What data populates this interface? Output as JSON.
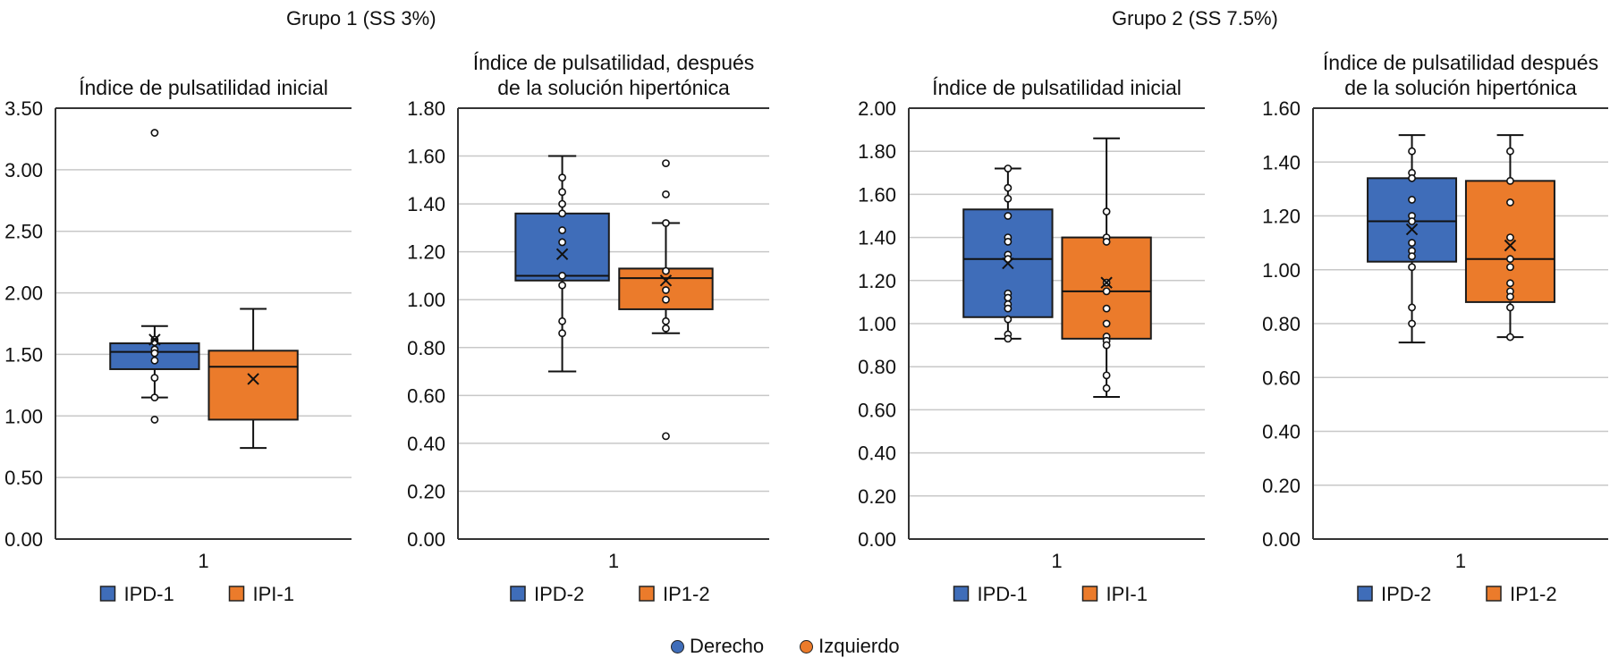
{
  "groups": [
    {
      "title": "Grupo 1 (SS 3%)"
    },
    {
      "title": "Grupo 2 (SS 7.5%)"
    }
  ],
  "colors": {
    "blue": "#3F6DB9",
    "orange": "#EB7B2B",
    "grid": "#C8C8C8",
    "axis": "#333333"
  },
  "series_legend": [
    {
      "label": "Derecho",
      "color": "#3F6DB9"
    },
    {
      "label": "Izquierdo",
      "color": "#EB7B2B"
    }
  ],
  "chart_data": [
    {
      "type": "box",
      "group": "Grupo 1 (SS 3%)",
      "title": [
        "Índice de pulsatilidad inicial"
      ],
      "xlabel": "",
      "ylabel": "",
      "categories": [
        "1"
      ],
      "ylim": [
        0,
        3.5
      ],
      "yticks": [
        "0.00",
        "0.50",
        "1.00",
        "1.50",
        "2.00",
        "2.50",
        "3.00",
        "3.50"
      ],
      "ystep": 0.5,
      "grid": true,
      "legend": "bottom",
      "series": [
        {
          "name": "IPD-1",
          "color": "#3F6DB9",
          "q1": 1.38,
          "median": 1.52,
          "q3": 1.59,
          "whisker_low": 1.15,
          "whisker_high": 1.73,
          "mean": 1.62,
          "points": [
            3.3,
            1.62,
            1.6,
            1.54,
            1.51,
            1.45,
            1.31,
            1.15,
            0.97
          ]
        },
        {
          "name": "IPI-1",
          "color": "#EB7B2B",
          "q1": 0.97,
          "median": 1.4,
          "q3": 1.53,
          "whisker_low": 0.74,
          "whisker_high": 1.87,
          "mean": 1.3,
          "points": []
        }
      ]
    },
    {
      "type": "box",
      "group": "Grupo 1 (SS 3%)",
      "title": [
        "Índice de pulsatilidad, después",
        "de la solución hipertónica"
      ],
      "xlabel": "",
      "ylabel": "",
      "categories": [
        "1"
      ],
      "ylim": [
        0,
        1.8
      ],
      "yticks": [
        "0.00",
        "0.20",
        "0.40",
        "0.60",
        "0.80",
        "1.00",
        "1.20",
        "1.40",
        "1.60",
        "1.80"
      ],
      "ystep": 0.2,
      "grid": true,
      "legend": "bottom",
      "series": [
        {
          "name": "IPD-2",
          "color": "#3F6DB9",
          "q1": 1.08,
          "median": 1.1,
          "q3": 1.36,
          "whisker_low": 0.7,
          "whisker_high": 1.6,
          "mean": 1.19,
          "points": [
            1.51,
            1.45,
            1.4,
            1.36,
            1.29,
            1.24,
            1.1,
            1.06,
            0.91,
            0.86
          ]
        },
        {
          "name": "IP1-2",
          "color": "#EB7B2B",
          "q1": 0.96,
          "median": 1.09,
          "q3": 1.13,
          "whisker_low": 0.86,
          "whisker_high": 1.32,
          "mean": 1.08,
          "points": [
            1.57,
            1.44,
            1.32,
            1.12,
            1.04,
            1.0,
            0.91,
            0.88,
            0.43
          ]
        }
      ]
    },
    {
      "type": "box",
      "group": "Grupo 2 (SS 7.5%)",
      "title": [
        "Índice de pulsatilidad inicial"
      ],
      "xlabel": "",
      "ylabel": "",
      "categories": [
        "1"
      ],
      "ylim": [
        0,
        2.0
      ],
      "yticks": [
        "0.00",
        "0.20",
        "0.40",
        "0.60",
        "0.80",
        "1.00",
        "1.20",
        "1.40",
        "1.60",
        "1.80",
        "2.00"
      ],
      "ystep": 0.2,
      "grid": true,
      "legend": "bottom",
      "series": [
        {
          "name": "IPD-1",
          "color": "#3F6DB9",
          "q1": 1.03,
          "median": 1.3,
          "q3": 1.53,
          "whisker_low": 0.93,
          "whisker_high": 1.72,
          "mean": 1.28,
          "points": [
            1.72,
            1.63,
            1.58,
            1.5,
            1.4,
            1.38,
            1.32,
            1.3,
            1.14,
            1.12,
            1.09,
            1.07,
            1.02,
            0.95,
            0.93
          ]
        },
        {
          "name": "IPI-1",
          "color": "#EB7B2B",
          "q1": 0.93,
          "median": 1.15,
          "q3": 1.4,
          "whisker_low": 0.66,
          "whisker_high": 1.86,
          "mean": 1.19,
          "points": [
            1.52,
            1.4,
            1.38,
            1.19,
            1.15,
            1.07,
            1.0,
            0.94,
            0.92,
            0.9,
            0.76,
            0.7
          ]
        }
      ]
    },
    {
      "type": "box",
      "group": "Grupo 2 (SS 7.5%)",
      "title": [
        "Índice de pulsatilidad después",
        "de la solución hipertónica"
      ],
      "xlabel": "",
      "ylabel": "",
      "categories": [
        "1"
      ],
      "ylim": [
        0,
        1.6
      ],
      "yticks": [
        "0.00",
        "0.20",
        "0.40",
        "0.60",
        "0.80",
        "1.00",
        "1.20",
        "1.40",
        "1.60"
      ],
      "ystep": 0.2,
      "grid": true,
      "legend": "bottom",
      "series": [
        {
          "name": "IPD-2",
          "color": "#3F6DB9",
          "q1": 1.03,
          "median": 1.18,
          "q3": 1.34,
          "whisker_low": 0.73,
          "whisker_high": 1.5,
          "mean": 1.15,
          "points": [
            1.44,
            1.36,
            1.34,
            1.26,
            1.2,
            1.18,
            1.1,
            1.07,
            1.05,
            1.01,
            0.86,
            0.8
          ]
        },
        {
          "name": "IP1-2",
          "color": "#EB7B2B",
          "q1": 0.88,
          "median": 1.04,
          "q3": 1.33,
          "whisker_low": 0.75,
          "whisker_high": 1.5,
          "mean": 1.09,
          "points": [
            1.44,
            1.33,
            1.25,
            1.12,
            1.04,
            1.01,
            0.95,
            0.92,
            0.9,
            0.86,
            0.75
          ]
        }
      ]
    }
  ]
}
